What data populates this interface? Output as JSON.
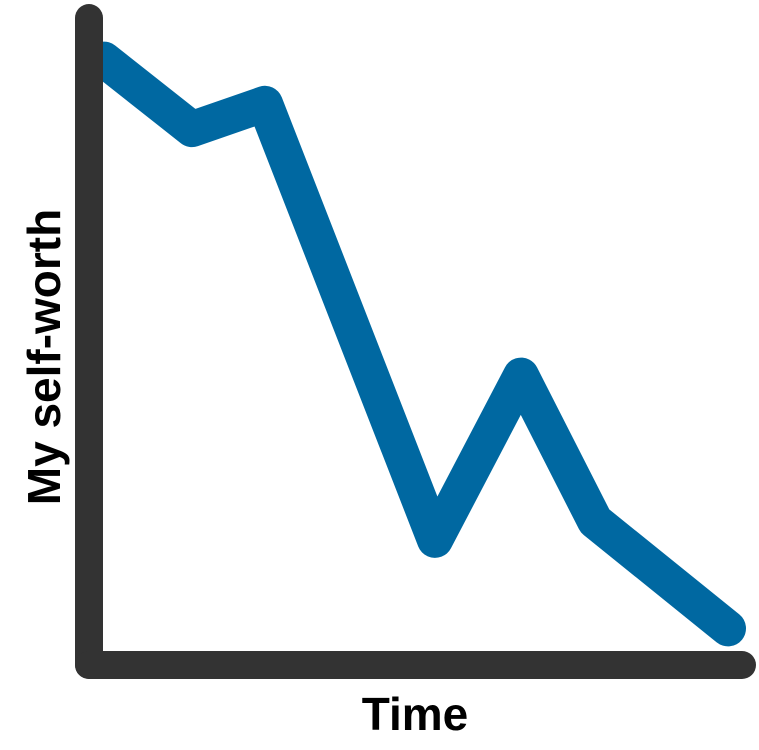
{
  "chart_data": {
    "type": "line",
    "title": "",
    "xlabel": "Time",
    "ylabel": "My self-worth",
    "x": [
      0,
      1,
      2,
      3,
      4,
      5,
      6
    ],
    "xlim": [
      0,
      6
    ],
    "ylim": [
      0,
      1
    ],
    "series": [
      {
        "values": [
          0.95,
          0.84,
          0.88,
          0.19,
          0.45,
          0.22,
          0.05
        ]
      }
    ],
    "grid": false,
    "ticks": false,
    "legend": "none",
    "colors": {
      "line": "#0068A1",
      "axis": "#333333",
      "text": "#000000",
      "background": "#FFFFFF"
    }
  }
}
